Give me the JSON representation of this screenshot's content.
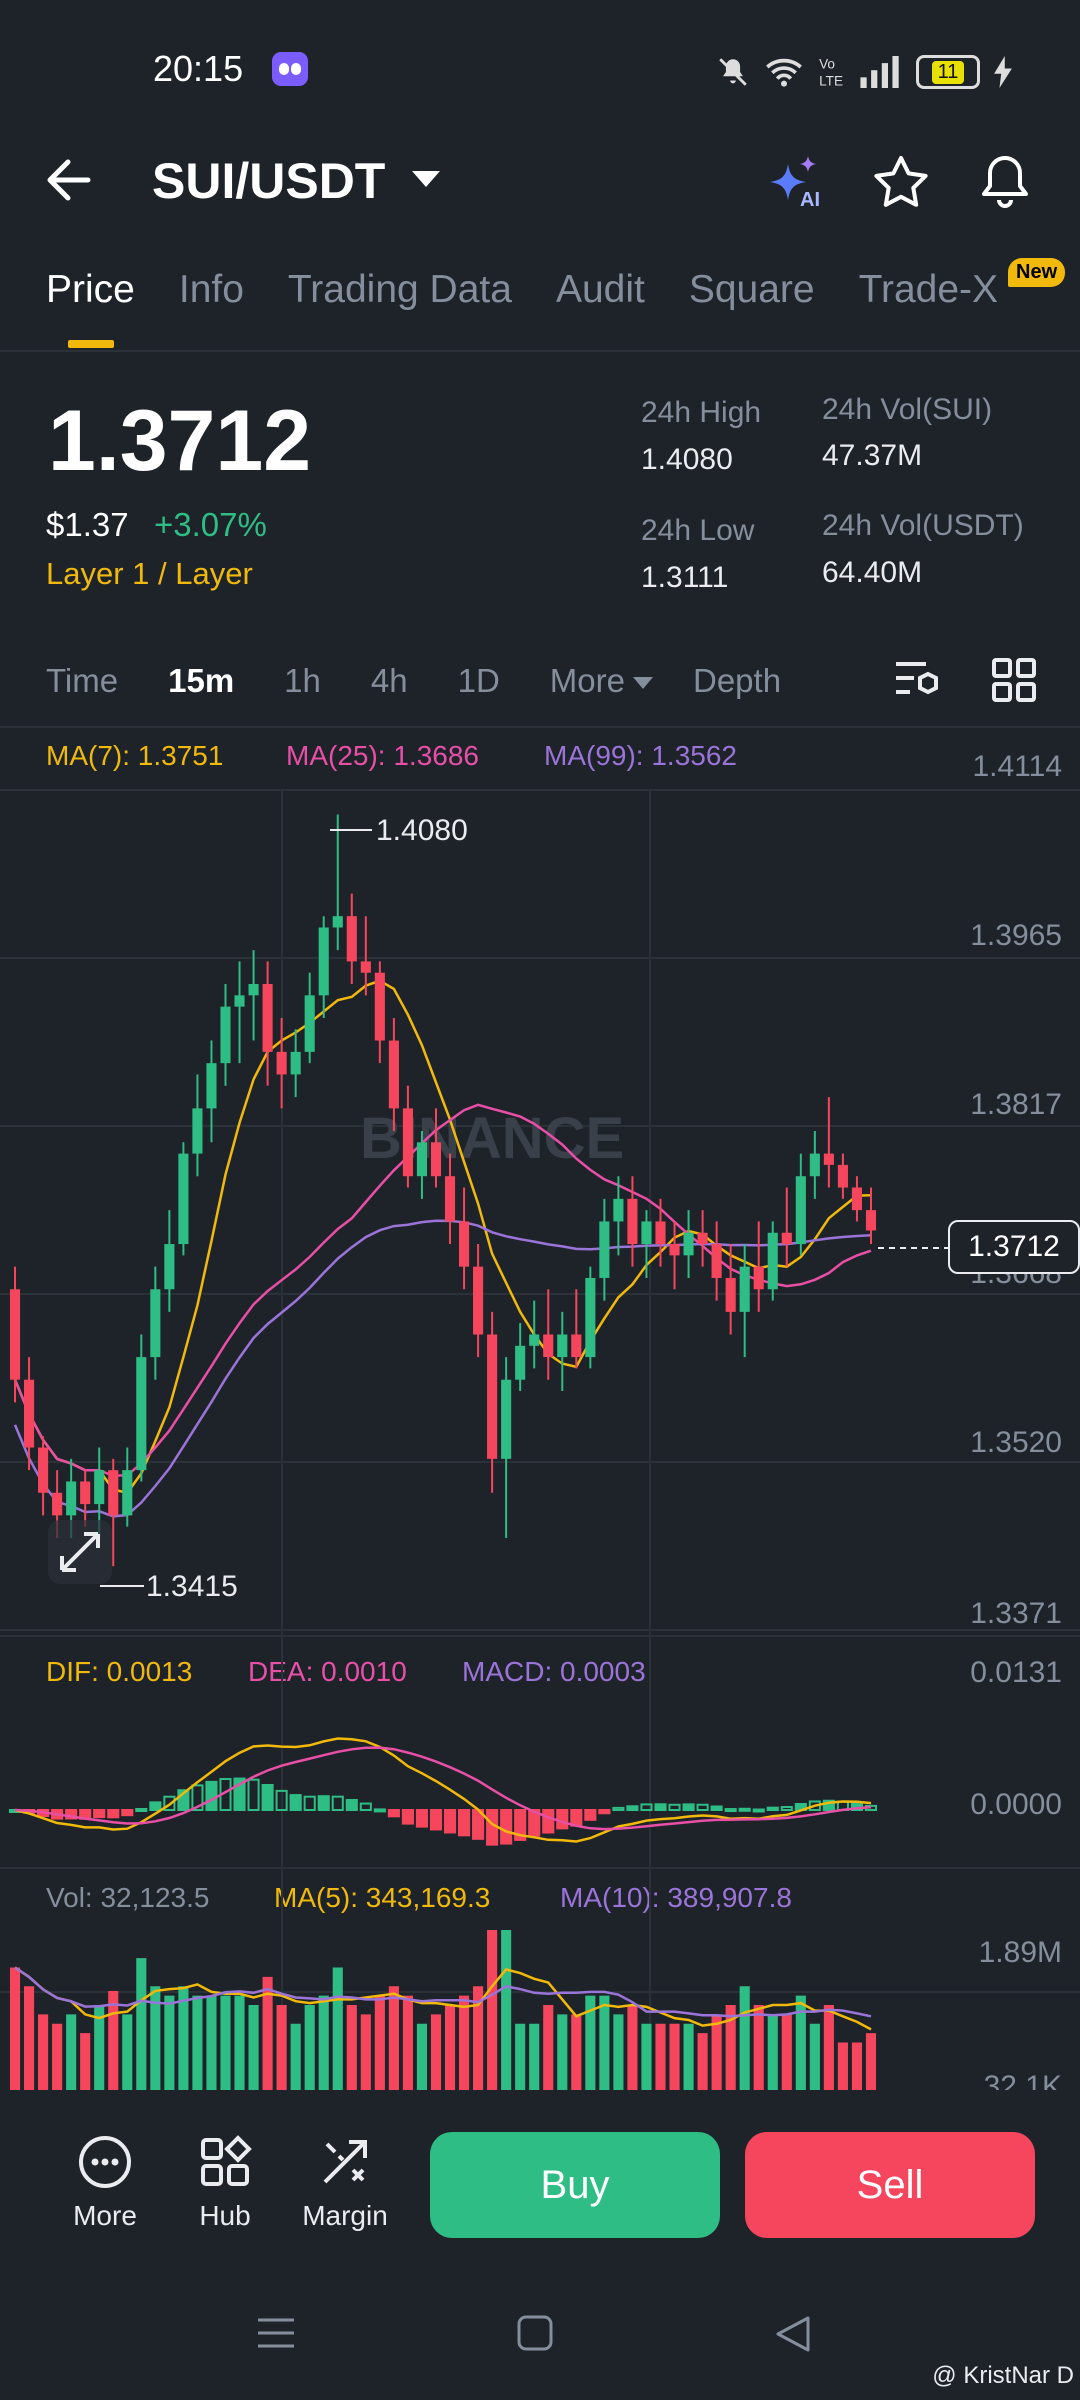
{
  "status_bar": {
    "time": "20:15",
    "battery": "11"
  },
  "header": {
    "title": "SUI/USDT",
    "ai_label": "AI"
  },
  "tabs": [
    {
      "label": "Price",
      "active": true
    },
    {
      "label": "Info"
    },
    {
      "label": "Trading Data"
    },
    {
      "label": "Audit"
    },
    {
      "label": "Square"
    },
    {
      "label": "Trade-X"
    }
  ],
  "new_badge": "New",
  "price": {
    "last": "1.3712",
    "usd": "$1.37",
    "change": "+3.07%",
    "category": "Layer 1 / Layer",
    "high_label": "24h High",
    "high": "1.4080",
    "low_label": "24h Low",
    "low": "1.3111",
    "vol_sui_label": "24h Vol(SUI)",
    "vol_sui": "47.37M",
    "vol_usdt_label": "24h Vol(USDT)",
    "vol_usdt": "64.40M"
  },
  "timeframes": [
    "Time",
    "15m",
    "1h",
    "4h",
    "1D",
    "More",
    "Depth"
  ],
  "active_timeframe": "15m",
  "indicators": {
    "ma7": "MA(7): 1.3751",
    "ma25": "MA(25): 1.3686",
    "ma99": "MA(99): 1.3562",
    "dif": "DIF: 0.0013",
    "dea": "DEA: 0.0010",
    "macd": "MACD: 0.0003",
    "vol": "Vol: 32,123.5",
    "vol_ma5": "MA(5): 343,169.3",
    "vol_ma10": "MA(10): 389,907.8"
  },
  "chart_data": {
    "type": "candlestick",
    "price_axis_ticks": [
      "1.4114",
      "1.3965",
      "1.3817",
      "1.3668",
      "1.3520",
      "1.3371"
    ],
    "macd_axis_ticks": [
      "0.0131",
      "0.0000"
    ],
    "volume_axis_ticks": [
      "1.89M",
      "32.1K"
    ],
    "ylim": [
      1.3371,
      1.4114
    ],
    "high_marker": "1.4080",
    "low_marker": "1.3415",
    "current_price_tag": "1.3712",
    "watermark": "BINANCE",
    "candles": [
      [
        1.366,
        1.368,
        1.356,
        1.358
      ],
      [
        1.358,
        1.36,
        1.35,
        1.352
      ],
      [
        1.352,
        1.353,
        1.346,
        1.348
      ],
      [
        1.348,
        1.35,
        1.344,
        1.346
      ],
      [
        1.346,
        1.351,
        1.344,
        1.349
      ],
      [
        1.349,
        1.35,
        1.345,
        1.347
      ],
      [
        1.347,
        1.352,
        1.344,
        1.35
      ],
      [
        1.35,
        1.351,
        1.3415,
        1.346
      ],
      [
        1.346,
        1.352,
        1.345,
        1.35
      ],
      [
        1.35,
        1.362,
        1.349,
        1.36
      ],
      [
        1.36,
        1.368,
        1.358,
        1.366
      ],
      [
        1.366,
        1.373,
        1.364,
        1.37
      ],
      [
        1.37,
        1.379,
        1.369,
        1.378
      ],
      [
        1.378,
        1.385,
        1.376,
        1.382
      ],
      [
        1.382,
        1.388,
        1.379,
        1.386
      ],
      [
        1.386,
        1.393,
        1.384,
        1.391
      ],
      [
        1.391,
        1.395,
        1.386,
        1.392
      ],
      [
        1.392,
        1.396,
        1.388,
        1.393
      ],
      [
        1.393,
        1.395,
        1.384,
        1.387
      ],
      [
        1.387,
        1.39,
        1.382,
        1.385
      ],
      [
        1.385,
        1.389,
        1.383,
        1.387
      ],
      [
        1.387,
        1.394,
        1.386,
        1.392
      ],
      [
        1.392,
        1.399,
        1.39,
        1.398
      ],
      [
        1.398,
        1.408,
        1.396,
        1.399
      ],
      [
        1.399,
        1.401,
        1.393,
        1.395
      ],
      [
        1.395,
        1.399,
        1.392,
        1.394
      ],
      [
        1.394,
        1.395,
        1.386,
        1.388
      ],
      [
        1.388,
        1.39,
        1.38,
        1.382
      ],
      [
        1.382,
        1.384,
        1.375,
        1.376
      ],
      [
        1.376,
        1.38,
        1.374,
        1.379
      ],
      [
        1.379,
        1.382,
        1.375,
        1.376
      ],
      [
        1.376,
        1.378,
        1.37,
        1.372
      ],
      [
        1.372,
        1.375,
        1.366,
        1.368
      ],
      [
        1.368,
        1.37,
        1.36,
        1.362
      ],
      [
        1.362,
        1.364,
        1.348,
        1.351
      ],
      [
        1.351,
        1.36,
        1.344,
        1.358
      ],
      [
        1.358,
        1.363,
        1.357,
        1.361
      ],
      [
        1.361,
        1.365,
        1.359,
        1.362
      ],
      [
        1.362,
        1.366,
        1.358,
        1.36
      ],
      [
        1.36,
        1.364,
        1.357,
        1.362
      ],
      [
        1.362,
        1.366,
        1.359,
        1.36
      ],
      [
        1.36,
        1.368,
        1.359,
        1.367
      ],
      [
        1.367,
        1.374,
        1.365,
        1.372
      ],
      [
        1.372,
        1.376,
        1.369,
        1.374
      ],
      [
        1.374,
        1.376,
        1.368,
        1.37
      ],
      [
        1.37,
        1.373,
        1.367,
        1.372
      ],
      [
        1.372,
        1.374,
        1.368,
        1.37
      ],
      [
        1.37,
        1.372,
        1.366,
        1.369
      ],
      [
        1.369,
        1.373,
        1.367,
        1.371
      ],
      [
        1.371,
        1.373,
        1.368,
        1.37
      ],
      [
        1.37,
        1.372,
        1.365,
        1.367
      ],
      [
        1.367,
        1.37,
        1.362,
        1.364
      ],
      [
        1.364,
        1.37,
        1.36,
        1.368
      ],
      [
        1.368,
        1.372,
        1.364,
        1.366
      ],
      [
        1.366,
        1.372,
        1.365,
        1.371
      ],
      [
        1.371,
        1.375,
        1.368,
        1.37
      ],
      [
        1.37,
        1.378,
        1.369,
        1.376
      ],
      [
        1.376,
        1.38,
        1.374,
        1.378
      ],
      [
        1.378,
        1.383,
        1.375,
        1.377
      ],
      [
        1.377,
        1.378,
        1.374,
        1.375
      ],
      [
        1.375,
        1.376,
        1.372,
        1.373
      ],
      [
        1.373,
        1.375,
        1.37,
        1.3712
      ]
    ]
  },
  "bottom_bar": {
    "more": "More",
    "hub": "Hub",
    "margin": "Margin",
    "buy": "Buy",
    "sell": "Sell"
  },
  "credit": "@ KristNar D",
  "colors": {
    "up": "#2ebd85",
    "down": "#f6465d",
    "accent": "#f0b90b",
    "background": "#1e2329"
  }
}
